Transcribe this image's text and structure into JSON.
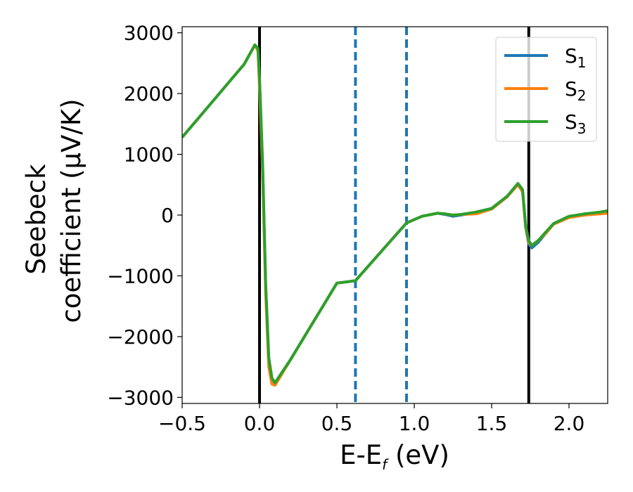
{
  "chart_data": {
    "type": "line",
    "xlabel": "E-E",
    "xlabel_sub": "f",
    "xlabel_unit": " (eV)",
    "ylabel_line1": "Seebeck",
    "ylabel_line2": "coefficient  (μV/K)",
    "xlim": [
      -0.5,
      2.25
    ],
    "ylim": [
      -3100,
      3100
    ],
    "xticks": [
      -0.5,
      0.0,
      0.5,
      1.0,
      1.5,
      2.0
    ],
    "xtick_labels": [
      "−0.5",
      "0.0",
      "0.5",
      "1.0",
      "1.5",
      "2.0"
    ],
    "yticks": [
      -3000,
      -2000,
      -1000,
      0,
      1000,
      2000,
      3000
    ],
    "ytick_labels": [
      "−3000",
      "−2000",
      "−1000",
      "0",
      "1000",
      "2000",
      "3000"
    ],
    "grid": false,
    "legend_position": "upper right",
    "series": [
      {
        "name": "S",
        "sub": "1",
        "color": "#1f77b4",
        "x": [
          -0.5,
          -0.4,
          -0.3,
          -0.2,
          -0.1,
          -0.03,
          -0.01,
          0.0,
          0.02,
          0.04,
          0.06,
          0.08,
          0.1,
          0.2,
          0.3,
          0.4,
          0.5,
          0.62,
          0.8,
          0.95,
          1.05,
          1.15,
          1.2,
          1.25,
          1.3,
          1.4,
          1.5,
          1.6,
          1.67,
          1.7,
          1.72,
          1.74,
          1.76,
          1.8,
          1.85,
          1.9,
          2.0,
          2.1,
          2.2,
          2.25
        ],
        "y": [
          1280,
          1580,
          1880,
          2180,
          2480,
          2800,
          2720,
          2200,
          800,
          -1200,
          -2400,
          -2700,
          -2780,
          -2380,
          -1960,
          -1540,
          -1120,
          -1080,
          -560,
          -130,
          -20,
          30,
          10,
          -20,
          0,
          40,
          100,
          300,
          510,
          400,
          -200,
          -480,
          -540,
          -450,
          -300,
          -150,
          -30,
          20,
          40,
          60
        ]
      },
      {
        "name": "S",
        "sub": "2",
        "color": "#ff7f0e",
        "x": [
          -0.5,
          -0.4,
          -0.3,
          -0.2,
          -0.1,
          -0.03,
          -0.01,
          0.0,
          0.02,
          0.04,
          0.06,
          0.08,
          0.1,
          0.2,
          0.3,
          0.4,
          0.5,
          0.62,
          0.8,
          0.95,
          1.05,
          1.15,
          1.2,
          1.25,
          1.3,
          1.4,
          1.5,
          1.6,
          1.67,
          1.7,
          1.72,
          1.74,
          1.76,
          1.8,
          1.85,
          1.9,
          2.0,
          2.1,
          2.2,
          2.25
        ],
        "y": [
          1280,
          1580,
          1880,
          2180,
          2480,
          2800,
          2700,
          2100,
          700,
          -1300,
          -2500,
          -2780,
          -2800,
          -2380,
          -1960,
          -1540,
          -1120,
          -1080,
          -560,
          -130,
          -20,
          30,
          20,
          0,
          10,
          20,
          100,
          300,
          500,
          380,
          -200,
          -450,
          -500,
          -420,
          -300,
          -150,
          -40,
          0,
          20,
          30
        ]
      },
      {
        "name": "S",
        "sub": "3",
        "color": "#2ca02c",
        "x": [
          -0.5,
          -0.4,
          -0.3,
          -0.2,
          -0.1,
          -0.03,
          -0.01,
          0.0,
          0.02,
          0.04,
          0.06,
          0.08,
          0.1,
          0.2,
          0.3,
          0.4,
          0.5,
          0.62,
          0.8,
          0.95,
          1.05,
          1.15,
          1.2,
          1.25,
          1.3,
          1.4,
          1.5,
          1.6,
          1.67,
          1.7,
          1.72,
          1.74,
          1.76,
          1.8,
          1.85,
          1.9,
          2.0,
          2.1,
          2.2,
          2.25
        ],
        "y": [
          1280,
          1580,
          1880,
          2180,
          2480,
          2800,
          2740,
          2250,
          850,
          -1150,
          -2350,
          -2680,
          -2760,
          -2380,
          -1960,
          -1540,
          -1120,
          -1080,
          -560,
          -130,
          -20,
          30,
          20,
          0,
          10,
          50,
          110,
          310,
          520,
          420,
          -180,
          -420,
          -500,
          -420,
          -280,
          -140,
          -20,
          20,
          50,
          70
        ]
      }
    ],
    "vlines": [
      {
        "x": 0.0,
        "style": "solid",
        "color": "#000000"
      },
      {
        "x": 0.62,
        "style": "dashed",
        "color": "#1f77b4"
      },
      {
        "x": 0.95,
        "style": "dashed",
        "color": "#1f77b4"
      },
      {
        "x": 1.74,
        "style": "solid",
        "color": "#000000"
      }
    ]
  }
}
